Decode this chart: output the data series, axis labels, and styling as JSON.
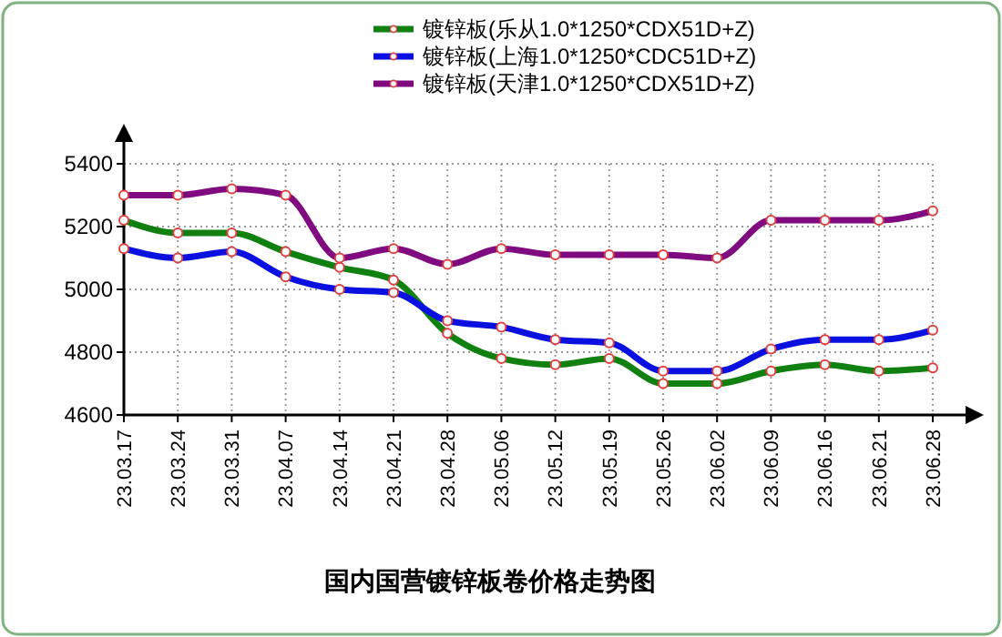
{
  "chart_data": {
    "type": "line",
    "title": "国内国营镀锌板卷价格走势图",
    "categories": [
      "23.03.17",
      "23.03.24",
      "23.03.31",
      "23.04.07",
      "23.04.14",
      "23.04.21",
      "23.04.28",
      "23.05.06",
      "23.05.12",
      "23.05.19",
      "23.05.26",
      "23.06.02",
      "23.06.09",
      "23.06.16",
      "23.06.21",
      "23.06.28"
    ],
    "series": [
      {
        "name": "镀锌板(乐从1.0*1250*CDX51D+Z)",
        "color": "#108010",
        "values": [
          5220,
          5180,
          5180,
          5120,
          5070,
          5030,
          4860,
          4780,
          4760,
          4780,
          4700,
          4700,
          4740,
          4760,
          4740,
          4750
        ]
      },
      {
        "name": "镀锌板(上海1.0*1250*CDC51D+Z)",
        "color": "#0a10e0",
        "values": [
          5130,
          5100,
          5120,
          5040,
          5000,
          4990,
          4900,
          4880,
          4840,
          4830,
          4740,
          4740,
          4810,
          4840,
          4840,
          4870
        ]
      },
      {
        "name": "镀锌板(天津1.0*1250*CDX51D+Z)",
        "color": "#800a80",
        "values": [
          5300,
          5300,
          5320,
          5300,
          5100,
          5130,
          5080,
          5130,
          5110,
          5110,
          5110,
          5100,
          5220,
          5220,
          5220,
          5250
        ]
      }
    ],
    "ylim": [
      4600,
      5400
    ],
    "yticks": [
      4600,
      4800,
      5000,
      5200,
      5400
    ],
    "grid": true,
    "legend": "top",
    "marker": "circle",
    "line_style": "solid"
  }
}
